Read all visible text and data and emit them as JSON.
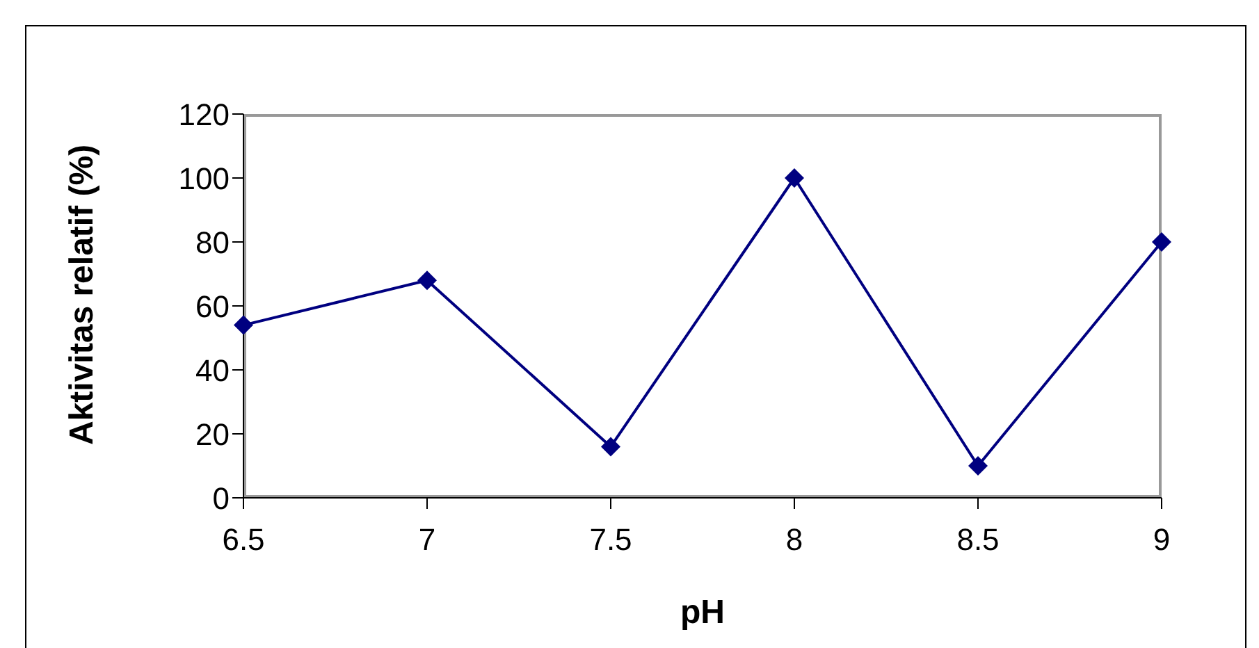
{
  "chart_data": {
    "type": "line",
    "xlabel": "pH",
    "ylabel": "Aktivitas relatif (%)",
    "categories": [
      "6.5",
      "7",
      "7.5",
      "8",
      "8.5",
      "9"
    ],
    "series": [
      {
        "color": "#000080",
        "values": [
          54,
          68,
          16,
          100,
          10,
          80
        ]
      }
    ],
    "ylim": [
      0,
      120
    ],
    "yticks": [
      0,
      20,
      40,
      60,
      80,
      100,
      120
    ],
    "grid": false,
    "legend": false,
    "marker": "diamond",
    "line_style": "solid"
  }
}
